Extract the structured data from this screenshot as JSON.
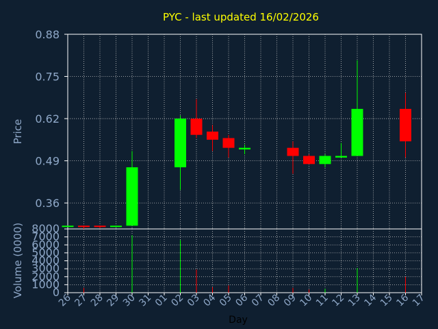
{
  "chart_data": {
    "type": "candlestick",
    "title": "PYC - last updated 16/02/2026",
    "ylabel_price": "Price",
    "ylabel_volume": "Volume (0000)",
    "xlabel": "Day",
    "price_ylim": [
      0.28,
      0.88
    ],
    "price_ticks": [
      "0.88",
      "0.75",
      "0.62",
      "0.49",
      "0.36"
    ],
    "price_tick_values": [
      0.88,
      0.75,
      0.62,
      0.49,
      0.36
    ],
    "volume_ylim": [
      0,
      8000
    ],
    "volume_ticks": [
      "8000",
      "7000",
      "6000",
      "5000",
      "4000",
      "3000",
      "2000",
      "1000",
      "0"
    ],
    "volume_tick_values": [
      8000,
      7000,
      6000,
      5000,
      4000,
      3000,
      2000,
      1000,
      0
    ],
    "x_tick_labels": [
      "26",
      "27",
      "28",
      "29",
      "30",
      "31",
      "01",
      "02",
      "03",
      "04",
      "05",
      "06",
      "07",
      "08",
      "09",
      "10",
      "11",
      "12",
      "13",
      "14",
      "15",
      "16",
      "17"
    ],
    "grid": true,
    "up_color": "#00ff00",
    "down_color": "#ff0000",
    "candles": [
      {
        "day": "26",
        "open": 0.29,
        "high": 0.29,
        "low": 0.29,
        "close": 0.29,
        "volume": 0
      },
      {
        "day": "27",
        "open": 0.29,
        "high": 0.29,
        "low": 0.28,
        "close": 0.287,
        "volume": 600
      },
      {
        "day": "28",
        "open": 0.29,
        "high": 0.29,
        "low": 0.282,
        "close": 0.288,
        "volume": 0
      },
      {
        "day": "29",
        "open": 0.288,
        "high": 0.29,
        "low": 0.288,
        "close": 0.29,
        "volume": 0
      },
      {
        "day": "30",
        "open": 0.29,
        "high": 0.52,
        "low": 0.29,
        "close": 0.47,
        "volume": 7200
      },
      {
        "day": "02",
        "open": 0.47,
        "high": 0.63,
        "low": 0.4,
        "close": 0.62,
        "volume": 6600
      },
      {
        "day": "03",
        "open": 0.62,
        "high": 0.68,
        "low": 0.56,
        "close": 0.57,
        "volume": 2900
      },
      {
        "day": "04",
        "open": 0.58,
        "high": 0.6,
        "low": 0.52,
        "close": 0.555,
        "volume": 700
      },
      {
        "day": "05",
        "open": 0.56,
        "high": 0.57,
        "low": 0.5,
        "close": 0.53,
        "volume": 900
      },
      {
        "day": "06",
        "open": 0.525,
        "high": 0.54,
        "low": 0.51,
        "close": 0.53,
        "volume": 0
      },
      {
        "day": "09",
        "open": 0.53,
        "high": 0.55,
        "low": 0.45,
        "close": 0.505,
        "volume": 600
      },
      {
        "day": "10",
        "open": 0.505,
        "high": 0.51,
        "low": 0.48,
        "close": 0.48,
        "volume": 400
      },
      {
        "day": "11",
        "open": 0.48,
        "high": 0.51,
        "low": 0.47,
        "close": 0.505,
        "volume": 500
      },
      {
        "day": "12",
        "open": 0.5,
        "high": 0.545,
        "low": 0.5,
        "close": 0.505,
        "volume": 0
      },
      {
        "day": "13",
        "open": 0.505,
        "high": 0.8,
        "low": 0.505,
        "close": 0.65,
        "volume": 3100
      },
      {
        "day": "16",
        "open": 0.65,
        "high": 0.7,
        "low": 0.5,
        "close": 0.55,
        "volume": 2000
      }
    ]
  }
}
